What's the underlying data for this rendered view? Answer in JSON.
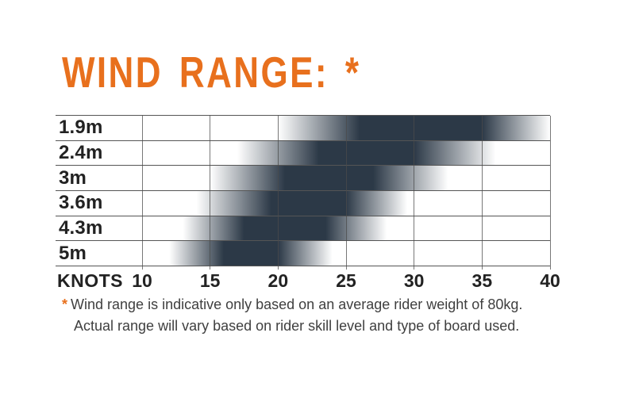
{
  "title": "WIND RANGE: *",
  "colors": {
    "accent_orange": "#e8701d",
    "bar_dark": "#2c3947",
    "grid_line": "#4b4b4b",
    "row_line": "#555555",
    "label_text": "#222222",
    "footnote_text": "#3f3f3f"
  },
  "chart_data": {
    "type": "bar",
    "subtype": "horizontal-gradient-range",
    "title": "WIND RANGE: *",
    "xlabel": "KNOTS",
    "x_ticks": [
      10,
      15,
      20,
      25,
      30,
      35,
      40
    ],
    "xlim": [
      10,
      40
    ],
    "grid": true,
    "legend": false,
    "categories": [
      "1.9m",
      "2.4m",
      "3m",
      "3.6m",
      "4.3m",
      "5m"
    ],
    "series": [
      {
        "label": "1.9m",
        "fade_in_start": 20,
        "solid_start": 26,
        "solid_end": 35,
        "fade_out_end": 40
      },
      {
        "label": "2.4m",
        "fade_in_start": 17,
        "solid_start": 23,
        "solid_end": 30,
        "fade_out_end": 36
      },
      {
        "label": "3m",
        "fade_in_start": 15,
        "solid_start": 20.5,
        "solid_end": 27,
        "fade_out_end": 32.5
      },
      {
        "label": "3.6m",
        "fade_in_start": 14,
        "solid_start": 19.5,
        "solid_end": 25,
        "fade_out_end": 29.5
      },
      {
        "label": "4.3m",
        "fade_in_start": 13,
        "solid_start": 17.5,
        "solid_end": 23.5,
        "fade_out_end": 28
      },
      {
        "label": "5m",
        "fade_in_start": 12,
        "solid_start": 16,
        "solid_end": 20,
        "fade_out_end": 24
      }
    ]
  },
  "footnote": {
    "star": "*",
    "line1": "Wind range is indicative only based on an average rider weight of 80kg.",
    "line2": "Actual range will vary based on rider skill level and type of board used."
  }
}
